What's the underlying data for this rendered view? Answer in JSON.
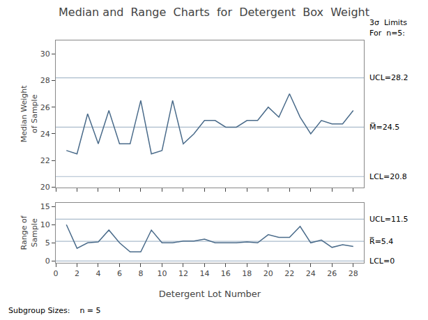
{
  "chart_data": [
    {
      "type": "line",
      "title": "Median and  Range  Charts  for  Detergent  Box  Weight",
      "ylabel": "Median Weight\nof Sample",
      "annotations": [
        "3σ  Limits",
        "For  n=5:"
      ],
      "x": [
        1,
        2,
        3,
        4,
        5,
        6,
        7,
        8,
        9,
        10,
        11,
        12,
        13,
        14,
        15,
        16,
        17,
        18,
        19,
        20,
        21,
        22,
        23,
        24,
        25,
        26,
        27,
        28
      ],
      "values": [
        22.75,
        22.5,
        25.5,
        23.25,
        25.75,
        23.25,
        23.25,
        26.5,
        22.5,
        22.75,
        26.5,
        23.25,
        24.0,
        25.0,
        25.0,
        24.5,
        24.5,
        25.0,
        25.0,
        26.0,
        25.25,
        27.0,
        25.25,
        24.0,
        25.0,
        24.75,
        24.75,
        25.75
      ],
      "color": "#4a6b8a",
      "control_limits": [
        {
          "label": "UCL=28.2",
          "value": 28.2,
          "color": "#aabbcc"
        },
        {
          "label": "M̅=24.5",
          "value": 24.5,
          "color": "#aabbcc"
        },
        {
          "label": "LCL=20.8",
          "value": 20.8,
          "color": "#aabbcc"
        }
      ],
      "xlim": [
        0,
        29
      ],
      "xticks": [
        0,
        2,
        4,
        6,
        8,
        10,
        12,
        14,
        16,
        18,
        20,
        22,
        24,
        26,
        28
      ],
      "ylim": [
        20,
        31
      ],
      "yticks": [
        20,
        22,
        24,
        26,
        28,
        30
      ],
      "tick_labels": "y",
      "grid": false
    },
    {
      "type": "line",
      "xlabel": "Detergent Lot Number",
      "ylabel": "Range of\nSample",
      "annotations": [
        "Subgroup Sizes:    n = 5"
      ],
      "x": [
        1,
        2,
        3,
        4,
        5,
        6,
        7,
        8,
        9,
        10,
        11,
        12,
        13,
        14,
        15,
        16,
        17,
        18,
        19,
        20,
        21,
        22,
        23,
        24,
        25,
        26,
        27,
        28
      ],
      "values": [
        10.0,
        3.5,
        5.0,
        5.25,
        8.5,
        5.0,
        2.5,
        2.5,
        8.5,
        5.0,
        5.0,
        5.5,
        5.5,
        6.0,
        5.0,
        5.0,
        5.0,
        5.25,
        5.0,
        7.25,
        6.5,
        6.5,
        9.5,
        5.0,
        5.75,
        3.75,
        4.5,
        4.0
      ],
      "color": "#4a6b8a",
      "control_limits": [
        {
          "label": "UCL=11.5",
          "value": 11.5,
          "color": "#aabbcc"
        },
        {
          "label": "R̅=5.4",
          "value": 5.4,
          "color": "#aabbcc"
        },
        {
          "label": "LCL=0",
          "value": 0,
          "color": "#aabbcc"
        }
      ],
      "xlim": [
        0,
        29
      ],
      "xticks": [
        0,
        2,
        4,
        6,
        8,
        10,
        12,
        14,
        16,
        18,
        20,
        22,
        24,
        26,
        28
      ],
      "ylim": [
        -0.5,
        16
      ],
      "yticks": [
        0,
        5,
        10,
        15
      ],
      "grid": false
    }
  ]
}
